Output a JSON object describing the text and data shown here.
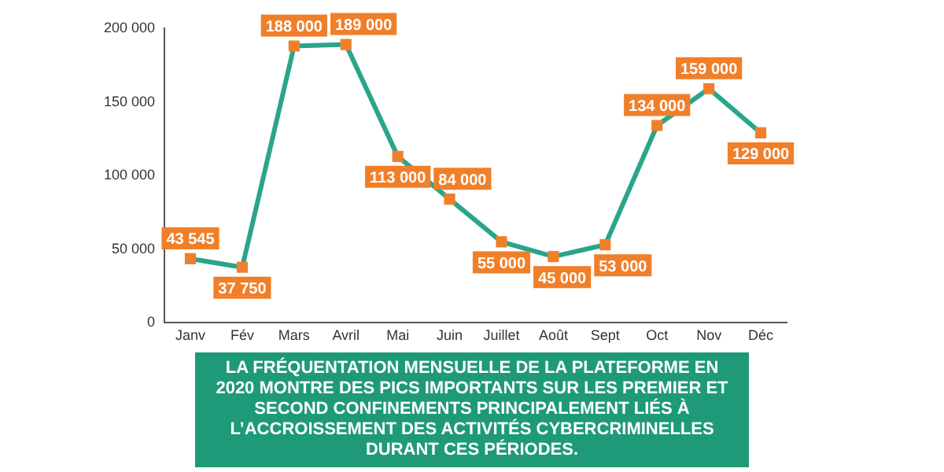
{
  "chart_data": {
    "type": "line",
    "categories": [
      "Janv",
      "Fév",
      "Mars",
      "Avril",
      "Mai",
      "Juin",
      "Juillet",
      "Août",
      "Sept",
      "Oct",
      "Nov",
      "Déc"
    ],
    "series": [
      {
        "color": "#2aa58a",
        "colors": [
          "#f07f2a",
          "#f07f2a",
          "#f07f2a",
          "#f07f2a",
          "#f07f2a",
          "#f07f2a",
          "#f07f2a",
          "#f07f2a",
          "#f07f2a",
          "#f07f2a",
          "#f07f2a",
          "#f07f2a"
        ],
        "values": [
          43545,
          37750,
          188000,
          189000,
          113000,
          84000,
          55000,
          45000,
          53000,
          134000,
          159000,
          129000
        ],
        "value_labels": [
          "43 545",
          "37 750",
          "188 000",
          "189 000",
          "113 000",
          "84 000",
          "55 000",
          "45 000",
          "53 000",
          "134 000",
          "159 000",
          "129 000"
        ]
      }
    ],
    "ylim": [
      0,
      200000
    ],
    "yticks": [
      {
        "value": 0,
        "label": "0"
      },
      {
        "value": 50000,
        "label": "50 000"
      },
      {
        "value": 100000,
        "label": "100 000"
      },
      {
        "value": 150000,
        "label": "150 000"
      },
      {
        "value": 200000,
        "label": "200 000"
      }
    ],
    "marker": "square",
    "line_style": "solid",
    "legend": false,
    "annotations": [
      "LA FRÉQUENTATION MENSUELLE DE LA PLATEFORME EN 2020 MONTRE DES PICS IMPORTANTS SUR LES PREMIER ET SECOND CONFINEMENTS PRINCIPALEMENT LIÉS À L’ACCROISSEMENT DES ACTIVITÉS CYBERCRIMINELLES DURANT CES PÉRIODES."
    ]
  }
}
